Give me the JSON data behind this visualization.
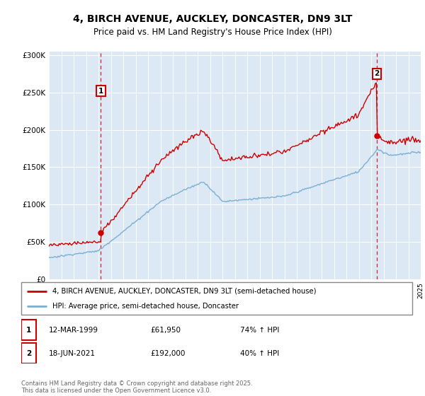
{
  "title_line1": "4, BIRCH AVENUE, AUCKLEY, DONCASTER, DN9 3LT",
  "title_line2": "Price paid vs. HM Land Registry's House Price Index (HPI)",
  "plot_bg_color": "#dce9f5",
  "y_ticks": [
    0,
    50000,
    100000,
    150000,
    200000,
    250000,
    300000
  ],
  "y_tick_labels": [
    "£0",
    "£50K",
    "£100K",
    "£150K",
    "£200K",
    "£250K",
    "£300K"
  ],
  "x_start_year": 1995,
  "x_end_year": 2025,
  "purchase1_year": 1999.19,
  "purchase1_price": 61950,
  "purchase1_label": "1",
  "purchase1_date": "12-MAR-1999",
  "purchase1_hpi": "74% ↑ HPI",
  "purchase2_year": 2021.46,
  "purchase2_price": 192000,
  "purchase2_label": "2",
  "purchase2_date": "18-JUN-2021",
  "purchase2_hpi": "40% ↑ HPI",
  "red_line_color": "#cc0000",
  "blue_line_color": "#7aafd4",
  "legend_label_red": "4, BIRCH AVENUE, AUCKLEY, DONCASTER, DN9 3LT (semi-detached house)",
  "legend_label_blue": "HPI: Average price, semi-detached house, Doncaster",
  "footer": "Contains HM Land Registry data © Crown copyright and database right 2025.\nThis data is licensed under the Open Government Licence v3.0."
}
